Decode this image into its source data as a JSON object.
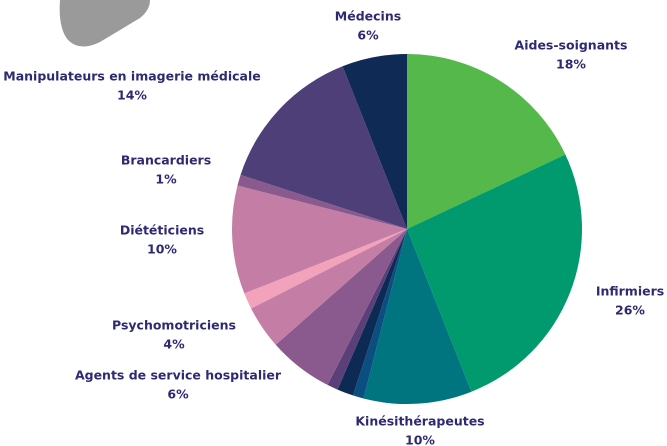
{
  "chart_data": {
    "type": "pie",
    "categories": [
      "Aides-soignants",
      "Infirmiers",
      "Kinésithérapeutes",
      null,
      null,
      null,
      "Agents de service hospitalier",
      "Psychomotriciens",
      null,
      "Diététiciens",
      "Brancardiers",
      "Manipulateurs en imagerie médicale",
      "Médecins"
    ],
    "values": [
      18,
      26,
      10,
      1,
      1.5,
      1,
      6,
      4,
      1.5,
      10,
      1,
      14,
      6
    ],
    "value_labels": [
      "18%",
      "26%",
      "10%",
      null,
      null,
      null,
      "6%",
      "4%",
      null,
      "10%",
      "1%",
      "14%",
      "6%"
    ],
    "colors": [
      "#55b84a",
      "#009a6e",
      "#00747f",
      "#0a4f80",
      "#0d2a55",
      "#5a3f78",
      "#8a5a8e",
      "#c47ea6",
      "#f2a2bb",
      "#c47ea6",
      "#8a5a8e",
      "#4e3f78",
      "#0e2a55"
    ]
  }
}
